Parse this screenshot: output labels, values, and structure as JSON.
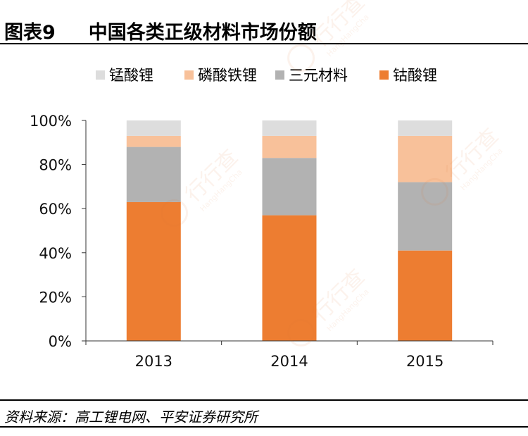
{
  "figure": {
    "title": "图表9     中国各类正级材料市场份额",
    "source": "资料来源：高工锂电网、平安证券研究所"
  },
  "watermark": {
    "text": "行行查",
    "subtext": "HangHangCha"
  },
  "chart_data": {
    "type": "bar",
    "stacked": true,
    "categories": [
      "2013",
      "2014",
      "2015"
    ],
    "series": [
      {
        "name": "钴酸锂",
        "color": "#ED7D31",
        "values": [
          63,
          57,
          41
        ]
      },
      {
        "name": "三元材料",
        "color": "#B2B2B2",
        "values": [
          25,
          26,
          31
        ]
      },
      {
        "name": "磷酸铁锂",
        "color": "#F8C19A",
        "values": [
          5,
          10,
          21
        ]
      },
      {
        "name": "锰酸锂",
        "color": "#DDDDDD",
        "values": [
          7,
          7,
          7
        ]
      }
    ],
    "legend_order": [
      "锰酸锂",
      "磷酸铁锂",
      "三元材料",
      "钴酸锂"
    ],
    "legend_position": "top",
    "ylim": [
      0,
      100
    ],
    "yticks": [
      "0%",
      "20%",
      "40%",
      "60%",
      "80%",
      "100%"
    ],
    "grid": false
  }
}
